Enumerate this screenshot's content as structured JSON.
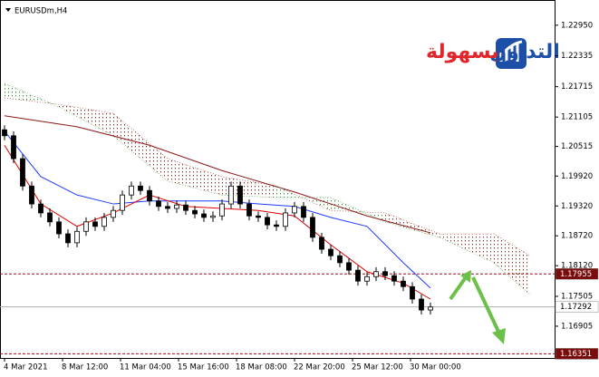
{
  "symbol": "EURUSDm,H4",
  "logo": {
    "word1": "التداول",
    "word2": "بسهولة"
  },
  "chart_data": {
    "type": "candlestick",
    "open": [
      1.2085,
      1.2073,
      1.2027,
      1.1972,
      1.1936,
      1.1918,
      1.19,
      1.1876,
      1.1858,
      1.1881,
      1.19,
      1.1891,
      1.1909,
      1.1923,
      1.1954,
      1.1972,
      1.1963,
      1.1942,
      1.1931,
      1.1927,
      1.1934,
      1.1923,
      1.1916,
      1.1909,
      1.1912,
      1.1936,
      1.1972,
      1.1936,
      1.1912,
      1.1909,
      1.1894,
      1.1891,
      1.1918,
      1.1931,
      1.1909,
      1.1869,
      1.1845,
      1.1832,
      1.1818,
      1.1803,
      1.1781,
      1.179,
      1.18,
      1.1792,
      1.1781,
      1.177,
      1.1745,
      1.1723
    ],
    "high": [
      1.2094,
      1.2082,
      1.2036,
      1.1981,
      1.1945,
      1.1927,
      1.1909,
      1.1885,
      1.189,
      1.1909,
      1.1909,
      1.1918,
      1.1932,
      1.1963,
      1.1981,
      1.1981,
      1.1972,
      1.1951,
      1.194,
      1.1943,
      1.1943,
      1.1932,
      1.1925,
      1.1921,
      1.1945,
      1.1981,
      1.1981,
      1.1945,
      1.1921,
      1.1918,
      1.1903,
      1.1927,
      1.194,
      1.194,
      1.1918,
      1.1878,
      1.1854,
      1.1841,
      1.1827,
      1.1812,
      1.1799,
      1.1809,
      1.1809,
      1.1801,
      1.179,
      1.1779,
      1.1754,
      1.1738
    ],
    "low": [
      1.2064,
      1.2018,
      1.1963,
      1.1927,
      1.1909,
      1.1891,
      1.1867,
      1.1849,
      1.1849,
      1.1872,
      1.1882,
      1.1882,
      1.19,
      1.1914,
      1.1945,
      1.1954,
      1.1933,
      1.1922,
      1.1918,
      1.1918,
      1.1914,
      1.1907,
      1.19,
      1.19,
      1.1903,
      1.1927,
      1.1927,
      1.1903,
      1.19,
      1.1885,
      1.1882,
      1.1882,
      1.1909,
      1.19,
      1.186,
      1.1836,
      1.1823,
      1.1809,
      1.1794,
      1.1772,
      1.1772,
      1.1781,
      1.1783,
      1.1772,
      1.1761,
      1.1736,
      1.1714,
      1.1714
    ],
    "close": [
      1.2073,
      1.2027,
      1.1972,
      1.1936,
      1.1918,
      1.19,
      1.1876,
      1.1858,
      1.1881,
      1.19,
      1.1891,
      1.1909,
      1.1923,
      1.1954,
      1.1972,
      1.1963,
      1.1942,
      1.1931,
      1.1927,
      1.1934,
      1.1923,
      1.1916,
      1.1909,
      1.1912,
      1.1936,
      1.1972,
      1.1936,
      1.1912,
      1.1909,
      1.1894,
      1.1891,
      1.1918,
      1.1931,
      1.1909,
      1.1869,
      1.1845,
      1.1832,
      1.1818,
      1.1803,
      1.1781,
      1.179,
      1.18,
      1.1792,
      1.1781,
      1.177,
      1.1745,
      1.1723,
      1.1729
    ],
    "candle_color": "#000000",
    "lines": [
      {
        "color": "#8b1a1a",
        "x": [
          0,
          8,
          16,
          24,
          32,
          40,
          47
        ],
        "values": [
          1.2113,
          1.2091,
          1.2054,
          1.2003,
          1.196,
          1.1912,
          1.1878
        ]
      },
      {
        "color": "#1e3cff",
        "x": [
          0,
          4,
          8,
          12,
          16,
          20,
          24,
          28,
          32,
          36,
          40,
          44,
          47
        ],
        "values": [
          1.2082,
          1.1991,
          1.1954,
          1.1936,
          1.1942,
          1.1942,
          1.1942,
          1.1936,
          1.1931,
          1.1909,
          1.1891,
          1.1818,
          1.1767
        ]
      },
      {
        "color": "#dd0000",
        "x": [
          0,
          4,
          8,
          12,
          16,
          20,
          24,
          28,
          32,
          36,
          40,
          44,
          47
        ],
        "values": [
          1.2054,
          1.1936,
          1.1891,
          1.1918,
          1.1954,
          1.1931,
          1.1927,
          1.1923,
          1.1912,
          1.1854,
          1.18,
          1.1777,
          1.1745
        ]
      }
    ],
    "cloud": {
      "x": [
        0,
        6,
        12,
        18,
        24,
        30,
        36,
        42,
        48,
        54,
        58
      ],
      "span_a": [
        1.2178,
        1.2131,
        1.2073,
        1.1982,
        1.1954,
        1.1949,
        1.1949,
        1.19,
        1.1869,
        1.1818,
        1.1754
      ],
      "span_b": [
        1.2149,
        1.2136,
        1.2118,
        1.2027,
        1.1991,
        1.1972,
        1.1923,
        1.1918,
        1.1876,
        1.1876,
        1.1832
      ],
      "up_color": "#2e9b2e",
      "down_color": "#9b2e1e"
    },
    "price_lines": [
      {
        "value": 1.17955,
        "color": "#a01010",
        "dashed": true,
        "label_bg": "#7a0c0c",
        "label_color": "#ffffff"
      },
      {
        "value": 1.17292,
        "color": "#b0b0b0",
        "dashed": false,
        "label_bg": "#ffffff",
        "label_color": "#000000"
      },
      {
        "value": 1.16351,
        "color": "#a01010",
        "dashed": true,
        "label_bg": "#7a0c0c",
        "label_color": "#ffffff"
      }
    ],
    "ylim": [
      1.16267,
      1.23456
    ],
    "yticks": [
      {
        "value": 1.2295,
        "label": "1.22950"
      },
      {
        "value": 1.22335,
        "label": "1.22335"
      },
      {
        "value": 1.21715,
        "label": "1.21715"
      },
      {
        "value": 1.21105,
        "label": "1.21105"
      },
      {
        "value": 1.20515,
        "label": "1.20515"
      },
      {
        "value": 1.1992,
        "label": "1.19920"
      },
      {
        "value": 1.1932,
        "label": "1.19320"
      },
      {
        "value": 1.1872,
        "label": "1.18720"
      },
      {
        "value": 1.1812,
        "label": "1.18120"
      },
      {
        "value": 1.17505,
        "label": "1.17505"
      },
      {
        "value": 1.16905,
        "label": "1.16905"
      }
    ],
    "xlim": [
      -0.5,
      60.7
    ],
    "xticks": [
      {
        "value": 0,
        "label": "4 Mar 2021"
      },
      {
        "value": 6.4,
        "label": "8 Mar 12:00"
      },
      {
        "value": 12.8,
        "label": "11 Mar 04:00"
      },
      {
        "value": 19.2,
        "label": "15 Mar 16:00"
      },
      {
        "value": 25.6,
        "label": "18 Mar 08:00"
      },
      {
        "value": 32,
        "label": "22 Mar 20:00"
      },
      {
        "value": 38.4,
        "label": "25 Mar 12:00"
      },
      {
        "value": 44.8,
        "label": "30 Mar 00:00"
      }
    ]
  }
}
